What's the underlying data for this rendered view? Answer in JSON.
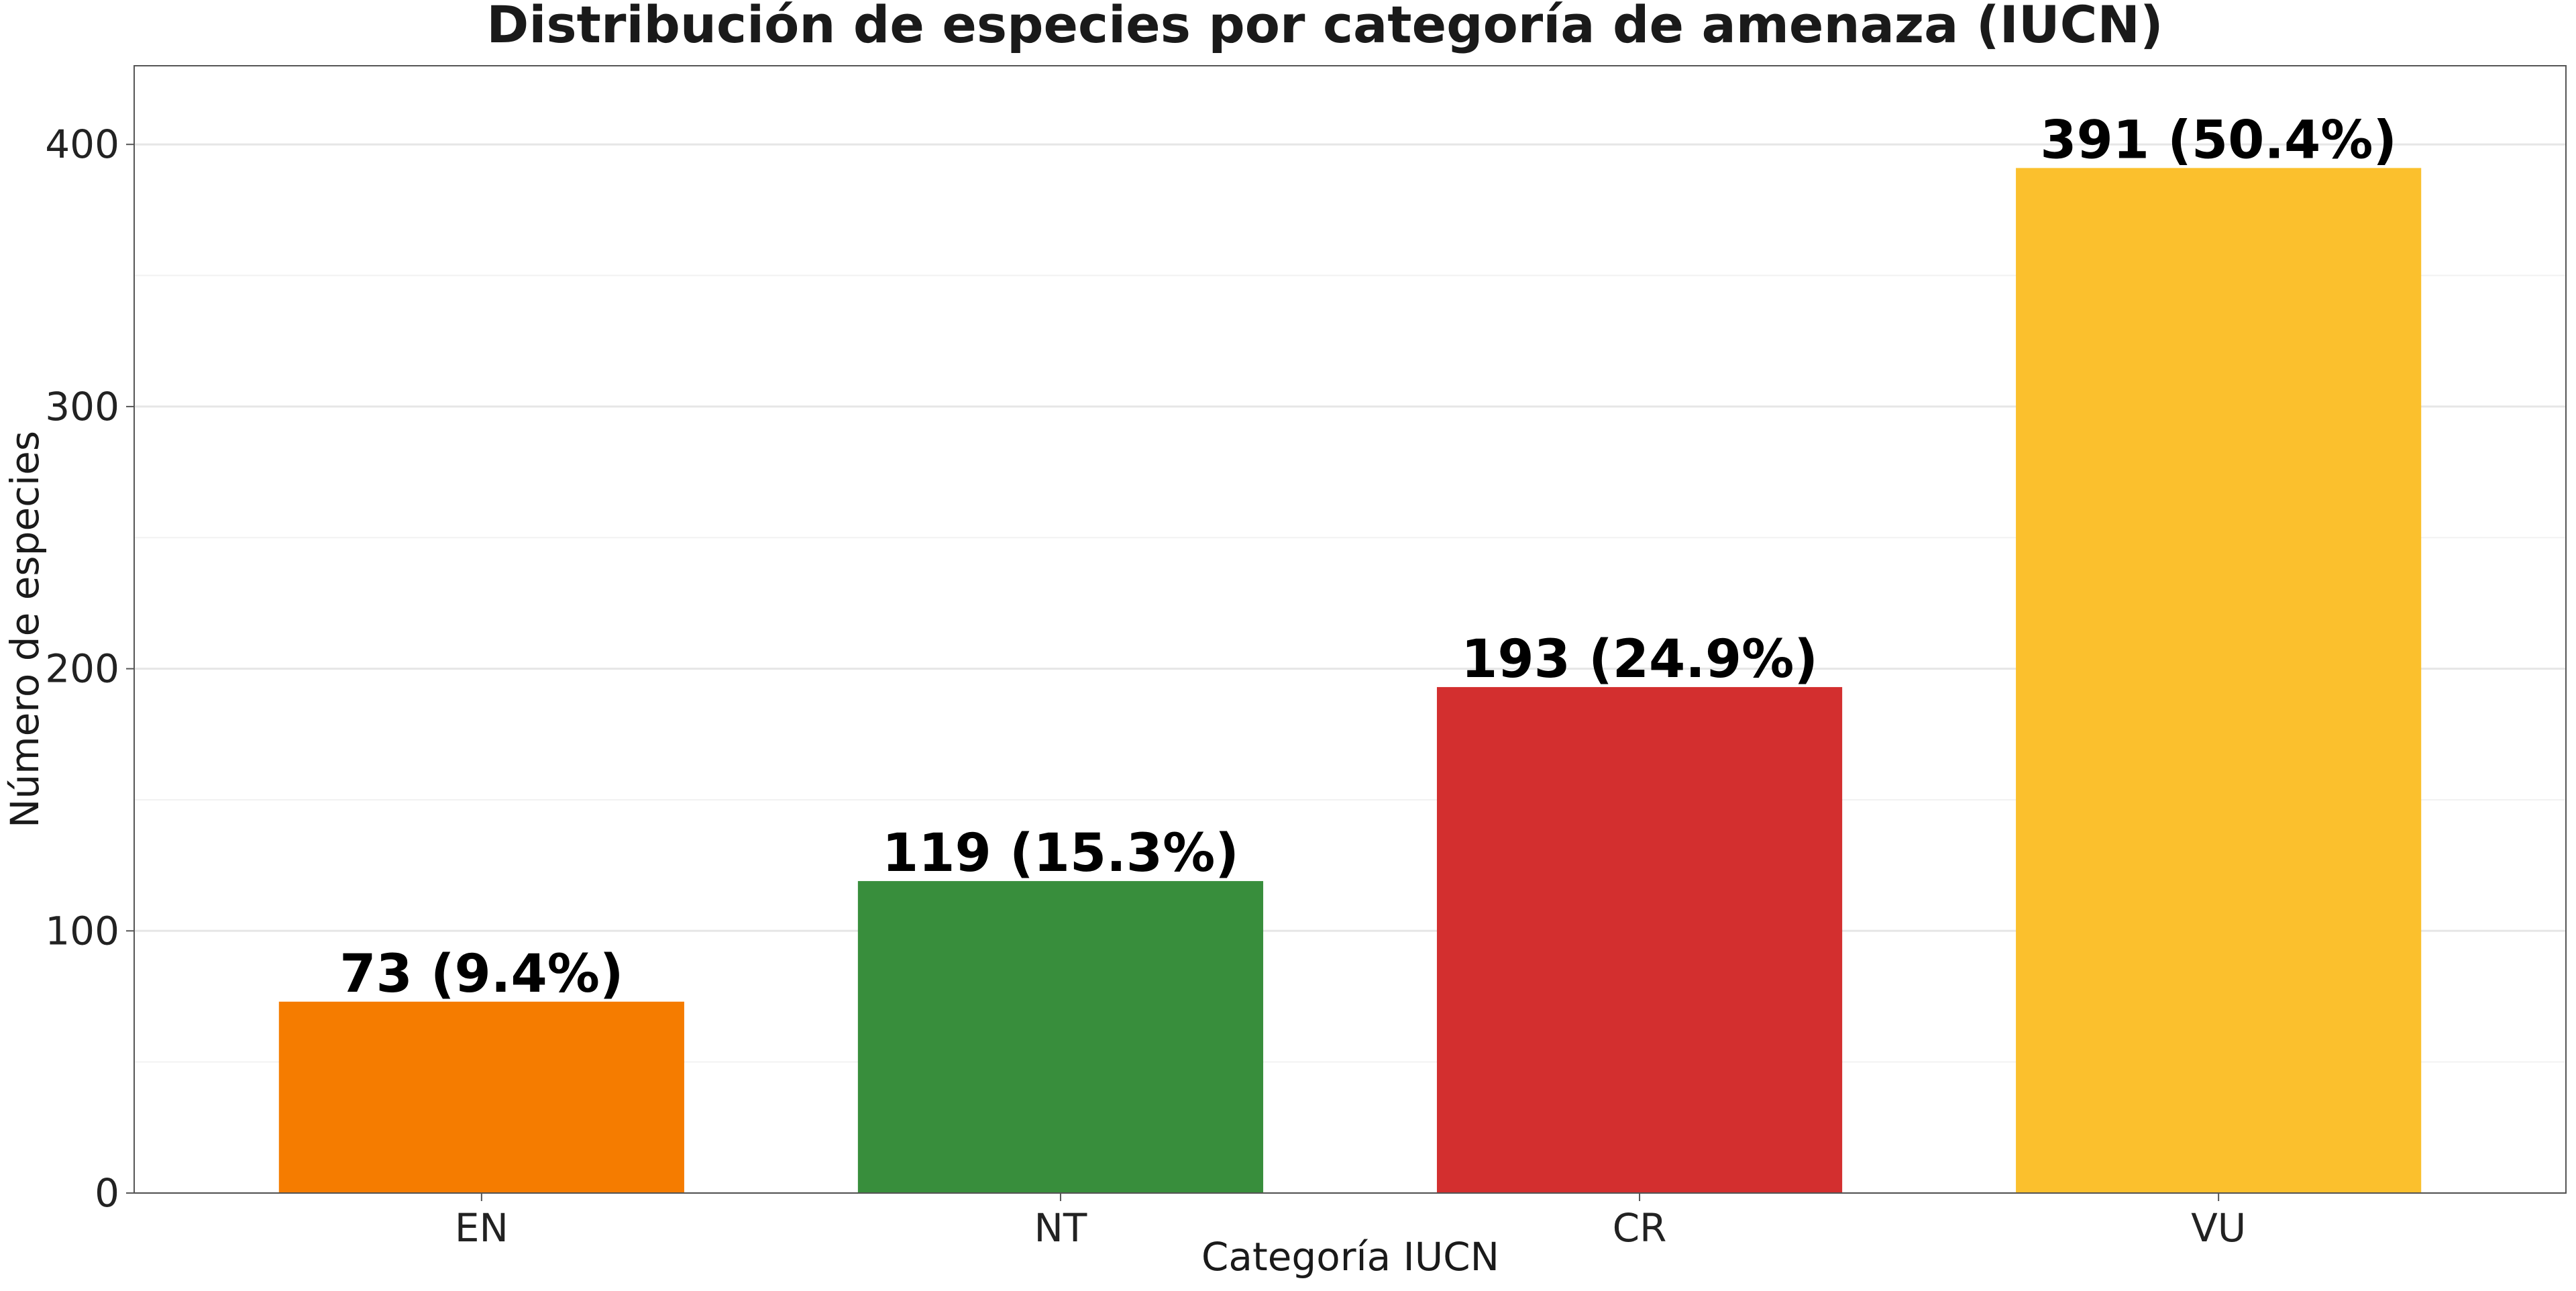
{
  "chart_data": {
    "type": "bar",
    "title": "Distribución de especies por categoría de amenaza (IUCN)",
    "xlabel": "Categoría IUCN",
    "ylabel": "Número de especies",
    "categories": [
      "EN",
      "NT",
      "CR",
      "VU"
    ],
    "values": [
      73,
      119,
      193,
      391
    ],
    "data_labels": [
      "73 (9.4%)",
      "119 (15.3%)",
      "193 (24.9%)",
      "391 (50.4%)"
    ],
    "colors": [
      "#F57C00",
      "#388E3C",
      "#D32F2F",
      "#FBC02D"
    ],
    "ylim": [
      0,
      430
    ],
    "yticks": [
      0,
      100,
      200,
      300,
      400
    ],
    "minor_yticks": [
      50,
      150,
      250,
      350
    ],
    "grid": true,
    "legend": "none"
  }
}
